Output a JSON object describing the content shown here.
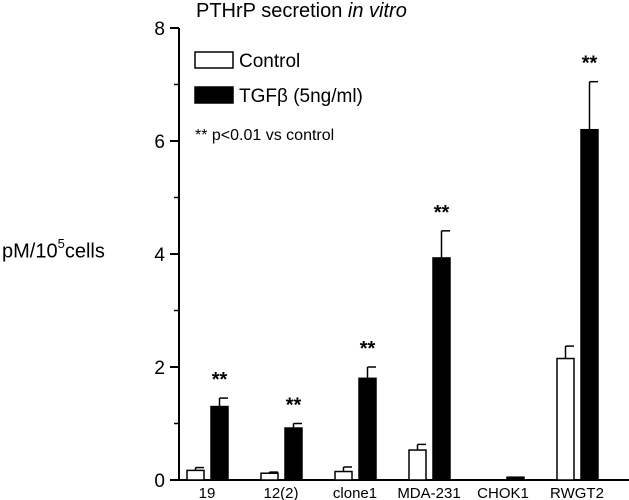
{
  "chart_data": {
    "type": "bar",
    "title_main": "PTHrP secretion ",
    "title_italic": "in vitro",
    "ylabel_main": "pM/10",
    "ylabel_sup": "5",
    "ylabel_tail": "cells",
    "xlabel": "",
    "ylim": [
      0,
      8
    ],
    "yticks": [
      "0",
      "2",
      "4",
      "6",
      "8"
    ],
    "grid": false,
    "legend_position": "top-left",
    "categories": [
      "19",
      "12(2)",
      "clone1",
      "MDA-231",
      "CHOK1",
      "RWGT2"
    ],
    "series": [
      {
        "name": "Control",
        "fill": "#ffffff",
        "values": [
          0.17,
          0.12,
          0.15,
          0.53,
          0.0,
          2.15
        ],
        "errors": [
          0.05,
          0.02,
          0.08,
          0.1,
          0.0,
          0.22
        ]
      },
      {
        "name": "TGFβ  (5ng/ml)",
        "fill": "#000000",
        "values": [
          1.3,
          0.92,
          1.8,
          3.93,
          0.05,
          6.2
        ],
        "errors": [
          0.15,
          0.08,
          0.2,
          0.48,
          0.0,
          0.85
        ]
      }
    ],
    "significance": [
      "**",
      "**",
      "**",
      "**",
      "",
      "**"
    ],
    "note": "** p<0.01 vs control"
  }
}
